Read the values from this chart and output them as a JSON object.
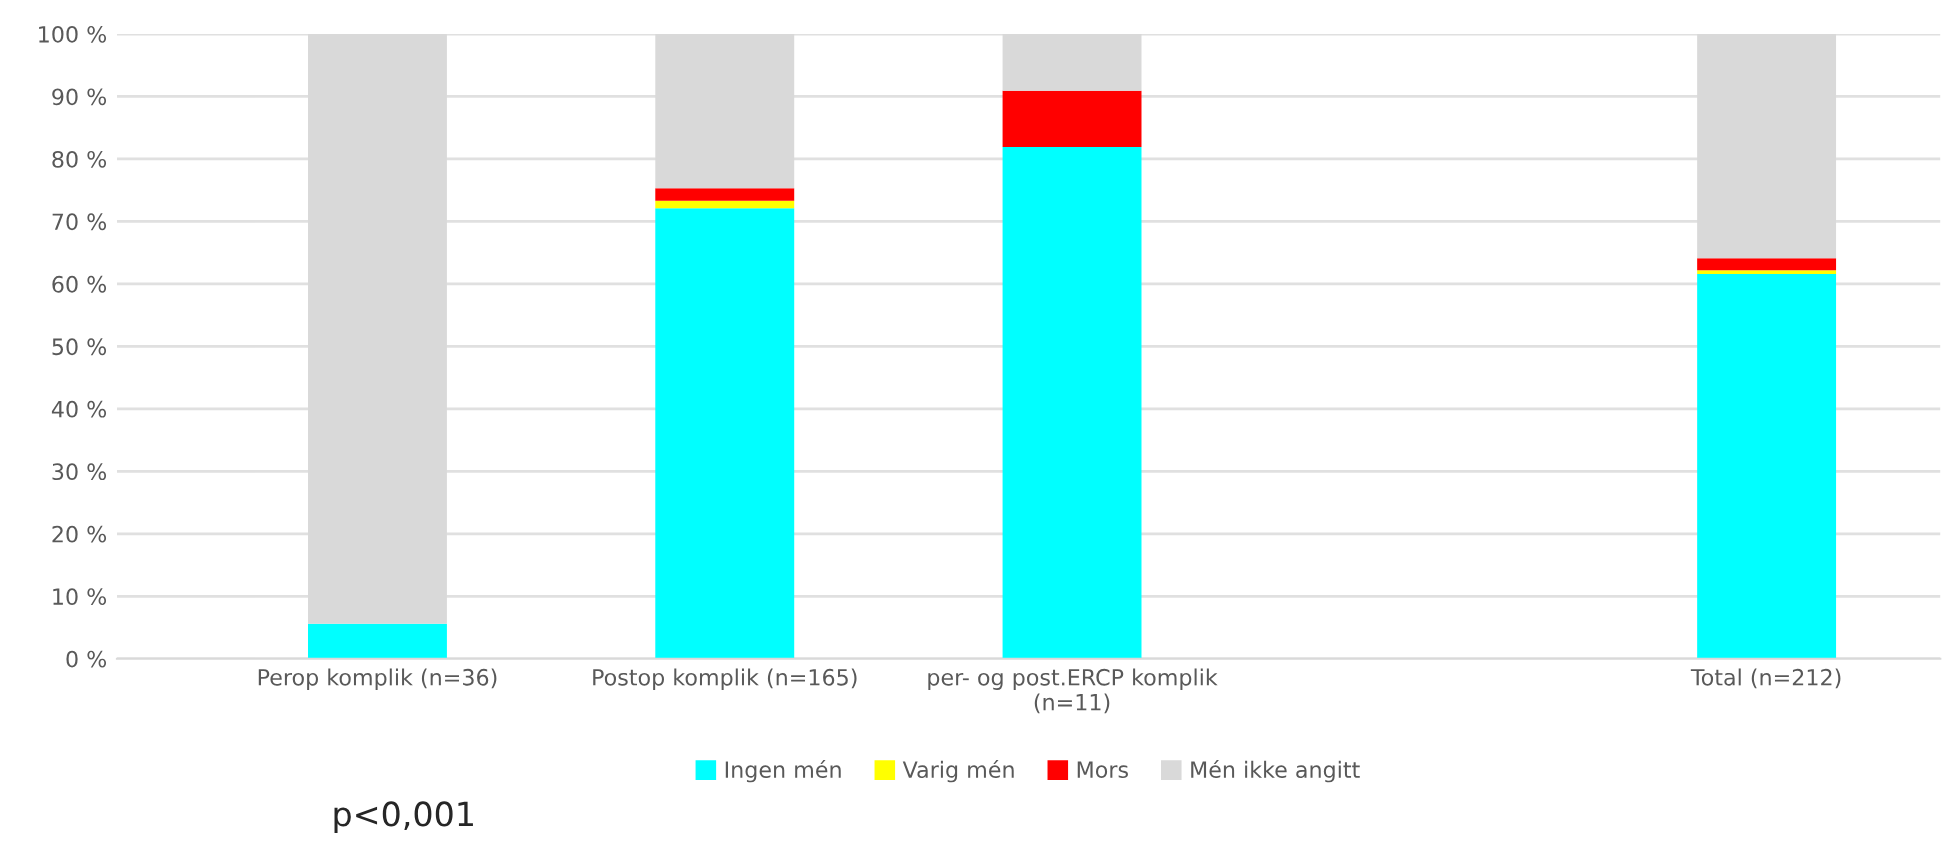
{
  "chart_data": {
    "type": "bar",
    "stacked": true,
    "categories": [
      "Perop komplik (n=36)",
      "Postop komplik (n=165)",
      "per- og post.ERCP komplik (n=11)",
      null,
      "Total (n=212)"
    ],
    "series": [
      {
        "name": "Ingen mén",
        "color": "#00ffff",
        "values": [
          5.6,
          72.1,
          81.9,
          null,
          61.6
        ]
      },
      {
        "name": "Varig mén",
        "color": "#ffff00",
        "values": [
          0,
          1.2,
          0,
          null,
          0.6
        ]
      },
      {
        "name": "Mors",
        "color": "#ff0000",
        "values": [
          0,
          2.0,
          9.0,
          null,
          1.9
        ]
      },
      {
        "name": "Mén ikke angitt",
        "color": "#d9d9d9",
        "values": [
          94.4,
          24.7,
          9.1,
          null,
          35.9
        ]
      }
    ],
    "ylim": [
      0,
      100
    ],
    "yticks": [
      {
        "value": 0,
        "label": "0 %"
      },
      {
        "value": 10,
        "label": "10 %"
      },
      {
        "value": 20,
        "label": "20 %"
      },
      {
        "value": 30,
        "label": "30 %"
      },
      {
        "value": 40,
        "label": "40 %"
      },
      {
        "value": 50,
        "label": "50 %"
      },
      {
        "value": 60,
        "label": "60 %"
      },
      {
        "value": 70,
        "label": "70 %"
      },
      {
        "value": 80,
        "label": "80 %"
      },
      {
        "value": 90,
        "label": "90 %"
      },
      {
        "value": 100,
        "label": "100 %"
      }
    ],
    "grid": "y",
    "legend": "bottom",
    "annotations": [
      "p<0,001"
    ]
  }
}
